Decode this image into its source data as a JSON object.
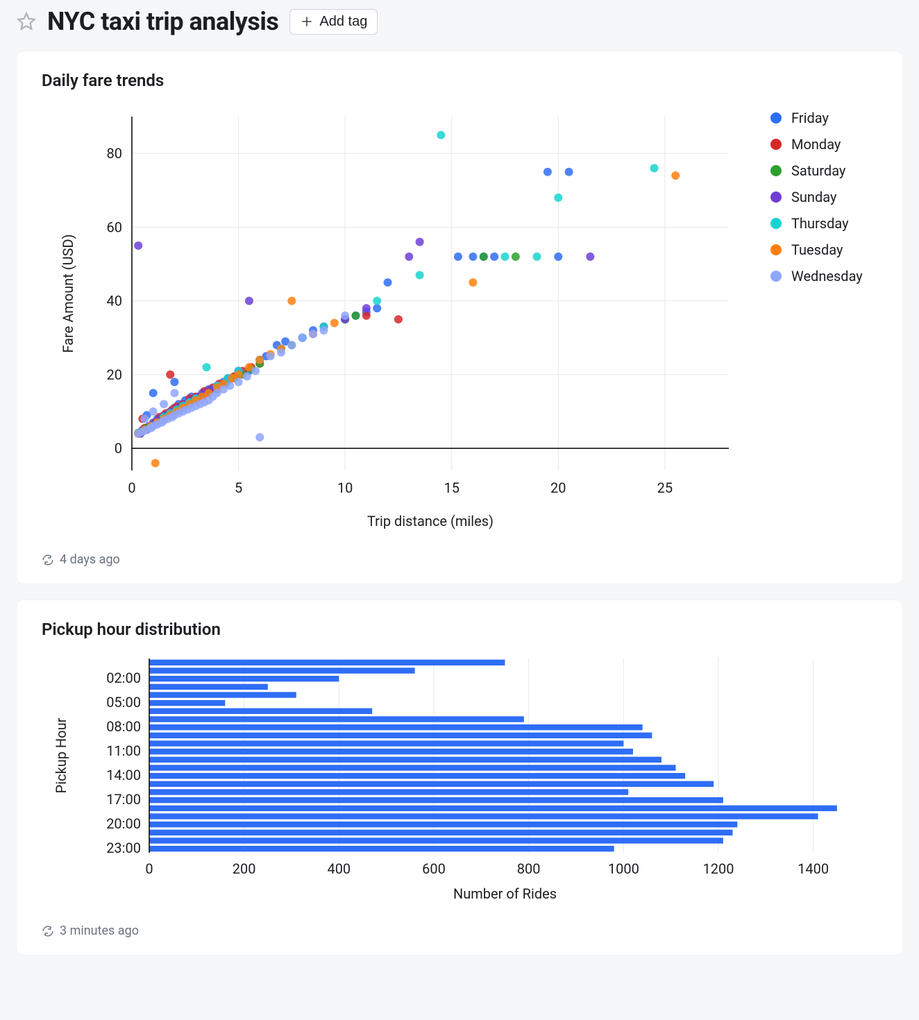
{
  "header": {
    "title": "NYC taxi trip analysis",
    "add_tag_label": "Add tag"
  },
  "scatter_card": {
    "title": "Daily fare trends",
    "refreshed": "4 days ago",
    "chart": {
      "type": "scatter",
      "xlabel": "Trip distance (miles)",
      "ylabel": "Fare Amount (USD)",
      "xlim": [
        0,
        28
      ],
      "ylim": [
        -6,
        90
      ],
      "xticks": [
        0,
        5,
        10,
        15,
        20,
        25
      ],
      "yticks": [
        0,
        20,
        40,
        60,
        80
      ],
      "background": "#ffffff",
      "grid_color": "#e5e7eb",
      "axis_color": "#000000",
      "marker_radius": 6,
      "marker_opacity": 0.85,
      "legend": [
        {
          "label": "Friday",
          "color": "#2e6df6"
        },
        {
          "label": "Monday",
          "color": "#d62728"
        },
        {
          "label": "Saturday",
          "color": "#2ca02c"
        },
        {
          "label": "Sunday",
          "color": "#6f3fd6"
        },
        {
          "label": "Thursday",
          "color": "#17d3d0"
        },
        {
          "label": "Tuesday",
          "color": "#ff7f0e"
        },
        {
          "label": "Wednesday",
          "color": "#8fa6ff"
        }
      ],
      "series": {
        "Friday": [
          [
            0.3,
            4
          ],
          [
            0.5,
            5
          ],
          [
            0.8,
            6
          ],
          [
            1.0,
            7
          ],
          [
            1.2,
            8
          ],
          [
            1.5,
            9
          ],
          [
            1.8,
            10
          ],
          [
            2.0,
            11
          ],
          [
            2.2,
            12
          ],
          [
            2.5,
            13
          ],
          [
            2.8,
            14
          ],
          [
            3.0,
            13
          ],
          [
            3.3,
            15
          ],
          [
            3.6,
            16
          ],
          [
            4.0,
            17
          ],
          [
            4.3,
            18
          ],
          [
            4.6,
            19
          ],
          [
            5.0,
            20
          ],
          [
            5.5,
            21
          ],
          [
            6.0,
            24
          ],
          [
            6.3,
            25
          ],
          [
            6.8,
            28
          ],
          [
            7.2,
            29
          ],
          [
            8.0,
            30
          ],
          [
            8.5,
            32
          ],
          [
            9.0,
            33
          ],
          [
            10.0,
            35
          ],
          [
            10.5,
            36
          ],
          [
            11.0,
            37
          ],
          [
            11.5,
            38
          ],
          [
            12.0,
            45
          ],
          [
            15.3,
            52
          ],
          [
            16.0,
            52
          ],
          [
            16.5,
            52
          ],
          [
            17.0,
            52
          ],
          [
            19.5,
            75
          ],
          [
            20.0,
            52
          ],
          [
            20.5,
            75
          ],
          [
            1.0,
            15
          ],
          [
            2.0,
            18
          ],
          [
            0.7,
            9
          ]
        ],
        "Monday": [
          [
            0.4,
            4
          ],
          [
            0.6,
            5.5
          ],
          [
            0.9,
            6.2
          ],
          [
            1.1,
            7
          ],
          [
            1.3,
            8.5
          ],
          [
            1.6,
            9.5
          ],
          [
            1.9,
            10.5
          ],
          [
            2.1,
            11.3
          ],
          [
            2.4,
            12
          ],
          [
            2.7,
            13.5
          ],
          [
            3.0,
            14
          ],
          [
            3.4,
            15.5
          ],
          [
            3.8,
            16.5
          ],
          [
            4.1,
            17.5
          ],
          [
            4.5,
            18.5
          ],
          [
            4.8,
            19.5
          ],
          [
            5.2,
            21
          ],
          [
            5.6,
            22
          ],
          [
            6.0,
            23
          ],
          [
            7.0,
            27
          ],
          [
            8.0,
            30
          ],
          [
            9.0,
            33
          ],
          [
            11.0,
            36
          ],
          [
            12.5,
            35
          ],
          [
            1.8,
            20
          ],
          [
            0.5,
            8
          ]
        ],
        "Saturday": [
          [
            0.3,
            4.2
          ],
          [
            0.7,
            5.5
          ],
          [
            1.0,
            6.5
          ],
          [
            1.4,
            8
          ],
          [
            1.7,
            9
          ],
          [
            2.0,
            10
          ],
          [
            2.3,
            11
          ],
          [
            2.6,
            12
          ],
          [
            3.0,
            13
          ],
          [
            3.3,
            14
          ],
          [
            3.6,
            15
          ],
          [
            4.0,
            16
          ],
          [
            4.4,
            17.5
          ],
          [
            4.8,
            19
          ],
          [
            5.2,
            20
          ],
          [
            5.6,
            21.5
          ],
          [
            6.0,
            23
          ],
          [
            7.5,
            28
          ],
          [
            8.0,
            30
          ],
          [
            10.0,
            35
          ],
          [
            10.5,
            36
          ],
          [
            18.0,
            52
          ],
          [
            16.5,
            52
          ]
        ],
        "Sunday": [
          [
            0.3,
            55
          ],
          [
            0.4,
            4
          ],
          [
            0.7,
            5
          ],
          [
            1.0,
            6.5
          ],
          [
            1.3,
            8
          ],
          [
            1.6,
            9
          ],
          [
            1.9,
            10
          ],
          [
            2.2,
            11
          ],
          [
            2.5,
            12
          ],
          [
            2.8,
            13
          ],
          [
            3.1,
            14
          ],
          [
            3.4,
            15
          ],
          [
            3.7,
            16
          ],
          [
            4.0,
            17
          ],
          [
            4.5,
            19
          ],
          [
            5.0,
            21
          ],
          [
            5.5,
            40
          ],
          [
            6.0,
            24
          ],
          [
            7.0,
            27
          ],
          [
            8.0,
            30
          ],
          [
            9.0,
            33
          ],
          [
            10.0,
            35
          ],
          [
            11.0,
            38
          ],
          [
            13.0,
            52
          ],
          [
            13.5,
            56
          ],
          [
            21.5,
            52
          ]
        ],
        "Thursday": [
          [
            0.3,
            4
          ],
          [
            0.6,
            5
          ],
          [
            0.9,
            6
          ],
          [
            1.2,
            7
          ],
          [
            1.5,
            8.5
          ],
          [
            1.8,
            9.5
          ],
          [
            2.1,
            10.5
          ],
          [
            2.4,
            11.5
          ],
          [
            2.7,
            12.5
          ],
          [
            3.0,
            13.5
          ],
          [
            3.5,
            22
          ],
          [
            4.0,
            17
          ],
          [
            4.5,
            19
          ],
          [
            5.0,
            21
          ],
          [
            6.0,
            24
          ],
          [
            7.0,
            27
          ],
          [
            8.0,
            30
          ],
          [
            9.0,
            33
          ],
          [
            11.5,
            40
          ],
          [
            13.5,
            47
          ],
          [
            14.5,
            85
          ],
          [
            17.5,
            52
          ],
          [
            19.0,
            52
          ],
          [
            20.0,
            68
          ],
          [
            24.5,
            76
          ]
        ],
        "Tuesday": [
          [
            0.3,
            4
          ],
          [
            0.6,
            5
          ],
          [
            0.9,
            6
          ],
          [
            1.1,
            -4
          ],
          [
            1.2,
            7
          ],
          [
            1.5,
            8
          ],
          [
            1.8,
            9
          ],
          [
            2.1,
            10
          ],
          [
            2.4,
            11
          ],
          [
            2.7,
            12
          ],
          [
            3.0,
            13
          ],
          [
            3.3,
            14
          ],
          [
            3.6,
            15
          ],
          [
            4.0,
            16.5
          ],
          [
            4.3,
            17.5
          ],
          [
            4.7,
            19
          ],
          [
            5.0,
            20
          ],
          [
            5.5,
            22
          ],
          [
            6.0,
            24
          ],
          [
            6.5,
            25.5
          ],
          [
            7.0,
            27
          ],
          [
            7.5,
            40
          ],
          [
            8.5,
            31
          ],
          [
            9.5,
            34
          ],
          [
            16.0,
            45
          ],
          [
            25.5,
            74
          ]
        ],
        "Wednesday": [
          [
            0.3,
            4
          ],
          [
            0.5,
            4.5
          ],
          [
            0.7,
            5
          ],
          [
            0.9,
            5.5
          ],
          [
            1.0,
            6
          ],
          [
            1.2,
            6.5
          ],
          [
            1.4,
            7
          ],
          [
            1.5,
            7.5
          ],
          [
            1.7,
            8
          ],
          [
            1.9,
            8.5
          ],
          [
            2.0,
            9
          ],
          [
            2.2,
            9.5
          ],
          [
            2.4,
            10
          ],
          [
            2.6,
            10.5
          ],
          [
            2.8,
            11
          ],
          [
            3.0,
            11.5
          ],
          [
            3.2,
            12
          ],
          [
            3.4,
            12.5
          ],
          [
            3.6,
            13
          ],
          [
            3.8,
            14
          ],
          [
            4.0,
            15
          ],
          [
            4.3,
            16
          ],
          [
            4.6,
            17
          ],
          [
            5.0,
            18
          ],
          [
            5.4,
            19.5
          ],
          [
            5.8,
            21
          ],
          [
            6.0,
            3
          ],
          [
            6.5,
            25
          ],
          [
            7.0,
            26
          ],
          [
            7.5,
            28
          ],
          [
            8.0,
            30
          ],
          [
            8.5,
            31
          ],
          [
            9.0,
            32
          ],
          [
            10.0,
            36
          ],
          [
            1.0,
            10
          ],
          [
            1.5,
            12
          ],
          [
            2.0,
            15
          ],
          [
            0.6,
            8
          ]
        ]
      }
    }
  },
  "bar_card": {
    "title": "Pickup hour distribution",
    "refreshed": "3 minutes ago",
    "chart": {
      "type": "bar-horizontal",
      "xlabel": "Number of Rides",
      "ylabel": "Pickup Hour",
      "bar_color": "#2e6df6",
      "background": "#ffffff",
      "grid_color": "#e5e7eb",
      "xlim": [
        0,
        1500
      ],
      "xticks": [
        0,
        200,
        400,
        600,
        800,
        1000,
        1200,
        1400
      ],
      "ytick_labels": [
        "02:00",
        "05:00",
        "08:00",
        "11:00",
        "14:00",
        "17:00",
        "20:00",
        "23:00"
      ],
      "ytick_hours": [
        2,
        5,
        8,
        11,
        14,
        17,
        20,
        23
      ],
      "values": [
        750,
        560,
        400,
        250,
        310,
        160,
        470,
        790,
        1040,
        1060,
        1000,
        1020,
        1080,
        1110,
        1130,
        1190,
        1010,
        1210,
        1450,
        1410,
        1240,
        1230,
        1210,
        980
      ]
    }
  }
}
